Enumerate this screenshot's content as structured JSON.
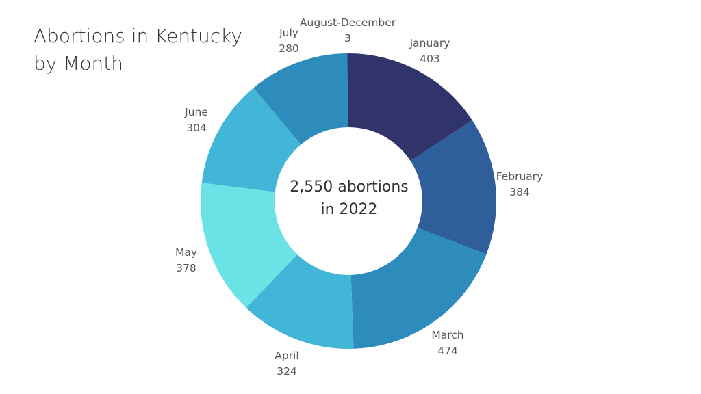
{
  "chart_data": {
    "type": "pie",
    "variant": "donut",
    "title": [
      "Abortions in Kentucky",
      "by Month"
    ],
    "center_label": [
      "2,550 abortions",
      "in 2022"
    ],
    "categories": [
      "January",
      "February",
      "March",
      "April",
      "May",
      "June",
      "July",
      "August-December"
    ],
    "values": [
      403,
      384,
      474,
      324,
      378,
      304,
      280,
      3
    ],
    "value_labels": [
      "403",
      "384",
      "474",
      "324",
      "378",
      "304",
      "280",
      "3"
    ],
    "colors": [
      "#31336b",
      "#2e5f9b",
      "#2d8cbb",
      "#41b6d6",
      "#6be3e6",
      "#41b6d6",
      "#2d8cbb",
      "#31336b"
    ]
  }
}
